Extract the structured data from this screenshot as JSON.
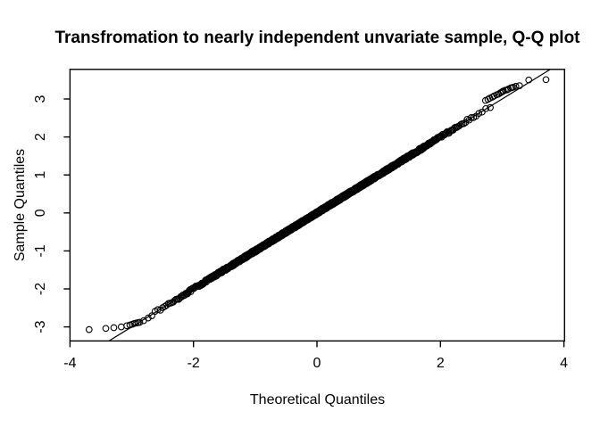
{
  "title": "Transfromation to nearly independent unvariate sample, Q-Q plot",
  "chart_data": {
    "type": "scatter",
    "subtype": "qq-plot",
    "title": "Transfromation to nearly independent unvariate sample, Q-Q plot",
    "xlabel": "Theoretical Quantiles",
    "ylabel": "Sample Quantiles",
    "x_ticks": [
      -4,
      -2,
      0,
      2,
      4
    ],
    "y_ticks": [
      -3,
      -2,
      -1,
      0,
      1,
      2,
      3
    ],
    "xlim": [
      -4.0,
      4.01
    ],
    "ylim": [
      -3.37,
      3.78
    ],
    "grid": false,
    "legend": "none",
    "marker": {
      "shape": "open-circle",
      "radius_px": 3.3,
      "color": "#000000"
    },
    "reference_line": {
      "slope": 1.0,
      "intercept": 0.0,
      "color": "#000000"
    },
    "dense_band": {
      "description": "heavily overplotted Q-Q points following y = x",
      "n_points": 1600,
      "theoretical_range": [
        -2.85,
        2.85
      ],
      "relation_slope": 1.0,
      "relation_intercept": 0.0,
      "jitter": 0.035
    },
    "lower_tail_points": [
      [
        -3.69,
        -3.07
      ],
      [
        -3.42,
        -3.04
      ],
      [
        -3.29,
        -3.02
      ],
      [
        -3.17,
        -3.0
      ],
      [
        -3.08,
        -2.97
      ],
      [
        -3.03,
        -2.95
      ],
      [
        -2.99,
        -2.93
      ],
      [
        -2.96,
        -2.91
      ],
      [
        -2.93,
        -2.9
      ],
      [
        -2.9,
        -2.89
      ],
      [
        -2.87,
        -2.88
      ]
    ],
    "upper_tail_points": [
      [
        2.73,
        2.96
      ],
      [
        2.77,
        2.99
      ],
      [
        2.8,
        3.02
      ],
      [
        2.84,
        3.05
      ],
      [
        2.87,
        3.08
      ],
      [
        2.91,
        3.11
      ],
      [
        2.94,
        3.13
      ],
      [
        2.97,
        3.16
      ],
      [
        2.99,
        3.18
      ],
      [
        3.01,
        3.2
      ],
      [
        3.02,
        3.21
      ],
      [
        3.05,
        3.23
      ],
      [
        3.08,
        3.24
      ],
      [
        3.1,
        3.26
      ],
      [
        3.14,
        3.29
      ],
      [
        3.16,
        3.3
      ],
      [
        3.18,
        3.31
      ],
      [
        3.22,
        3.33
      ],
      [
        3.28,
        3.35
      ],
      [
        3.43,
        3.5
      ],
      [
        3.71,
        3.51
      ]
    ],
    "colors": {
      "points": "#000000",
      "line": "#000000",
      "axis": "#000000",
      "background": "#ffffff"
    }
  }
}
